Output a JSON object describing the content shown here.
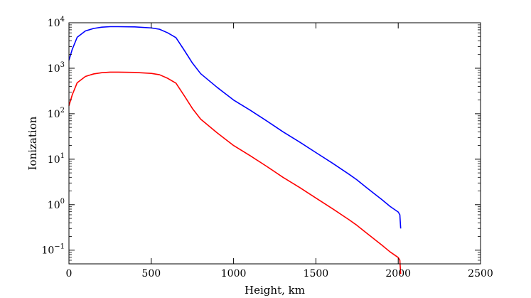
{
  "chart_data": {
    "type": "line",
    "title": "",
    "xlabel": "Height, km",
    "ylabel": "Ionization",
    "xlim": [
      0,
      2500
    ],
    "ylim": [
      0.05,
      10000
    ],
    "yscale": "log",
    "grid": false,
    "legend": "none",
    "x_ticks": [
      0,
      500,
      1000,
      1500,
      2000,
      2500
    ],
    "x_tick_labels": [
      "0",
      "500",
      "1000",
      "1500",
      "2000",
      "2500"
    ],
    "y_ticks": [
      {
        "value": 0.1,
        "base": "10",
        "exp": "−1"
      },
      {
        "value": 1,
        "base": "10",
        "exp": "0"
      },
      {
        "value": 10,
        "base": "10",
        "exp": "1"
      },
      {
        "value": 100,
        "base": "10",
        "exp": "2"
      },
      {
        "value": 1000,
        "base": "10",
        "exp": "3"
      },
      {
        "value": 10000,
        "base": "10",
        "exp": "4"
      }
    ],
    "series": [
      {
        "color": "#0000ff",
        "x": [
          0,
          20,
          50,
          100,
          150,
          200,
          250,
          300,
          400,
          500,
          550,
          600,
          650,
          700,
          750,
          800,
          900,
          1000,
          1100,
          1200,
          1300,
          1400,
          1500,
          1600,
          1700,
          1750,
          1800,
          1850,
          1900,
          1950,
          2000,
          2010,
          2012,
          2015
        ],
        "y": [
          1500,
          2600,
          4800,
          6600,
          7500,
          8000,
          8200,
          8200,
          8100,
          7700,
          7200,
          6000,
          4700,
          2500,
          1300,
          760,
          380,
          200,
          120,
          70,
          40,
          24,
          14,
          8.2,
          4.7,
          3.5,
          2.5,
          1.8,
          1.3,
          0.92,
          0.69,
          0.6,
          0.45,
          0.3
        ]
      },
      {
        "color": "#ff0000",
        "x": [
          0,
          20,
          50,
          100,
          150,
          200,
          250,
          300,
          400,
          500,
          550,
          600,
          650,
          700,
          750,
          800,
          900,
          1000,
          1100,
          1200,
          1300,
          1400,
          1500,
          1600,
          1700,
          1750,
          1800,
          1850,
          1900,
          1950,
          2000,
          2010,
          2012,
          2015
        ],
        "y": [
          150,
          260,
          480,
          660,
          750,
          800,
          820,
          820,
          810,
          770,
          720,
          600,
          470,
          250,
          130,
          76,
          38,
          20,
          12,
          7,
          4,
          2.4,
          1.4,
          0.82,
          0.47,
          0.35,
          0.25,
          0.18,
          0.13,
          0.092,
          0.069,
          0.06,
          0.045,
          0.03
        ]
      }
    ]
  }
}
